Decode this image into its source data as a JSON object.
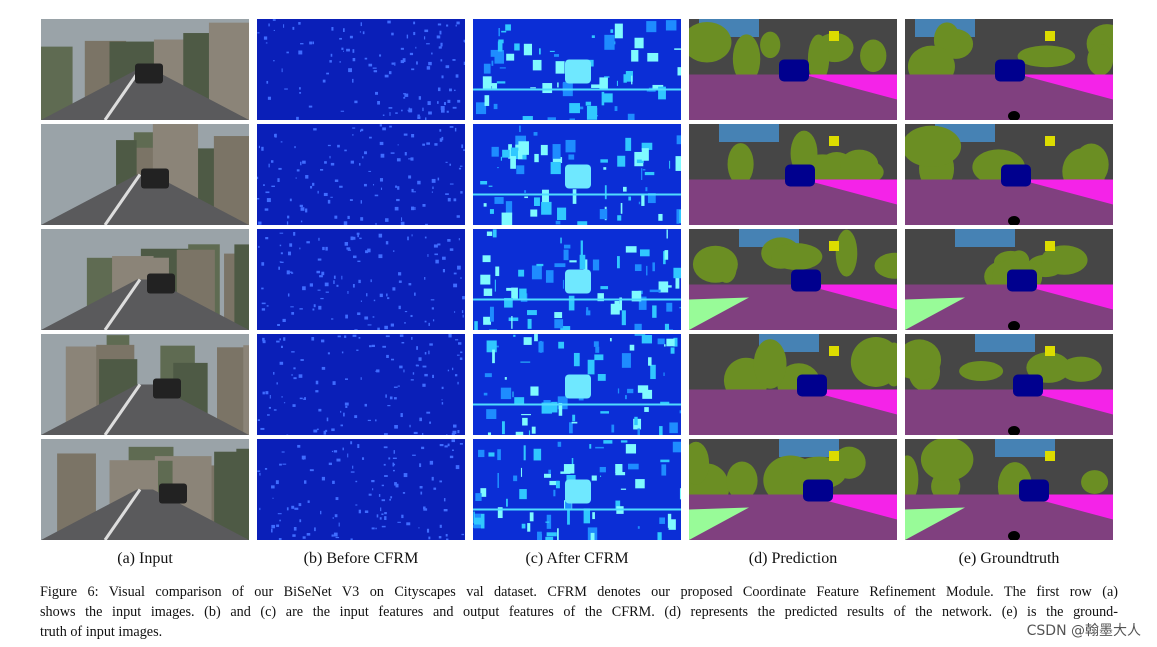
{
  "figure": {
    "columns": [
      "(a) Input",
      "(b) Before CFRM",
      "(c) After CFRM",
      "(d) Prediction",
      "(e) Groundtruth"
    ],
    "caption": {
      "lines": [
        "Figure 6: Visual comparison of our BiSeNet V3 on Cityscapes val dataset. CFRM denotes our proposed Coordinate Feature Refinement Module. The first row (a)",
        "shows the input images. (b) and (c) are the input features and output features of the CFRM. (d) represents the predicted results of the network. (e) is the ground-",
        "truth of input images."
      ]
    }
  },
  "watermark": "CSDN @翰墨大人"
}
